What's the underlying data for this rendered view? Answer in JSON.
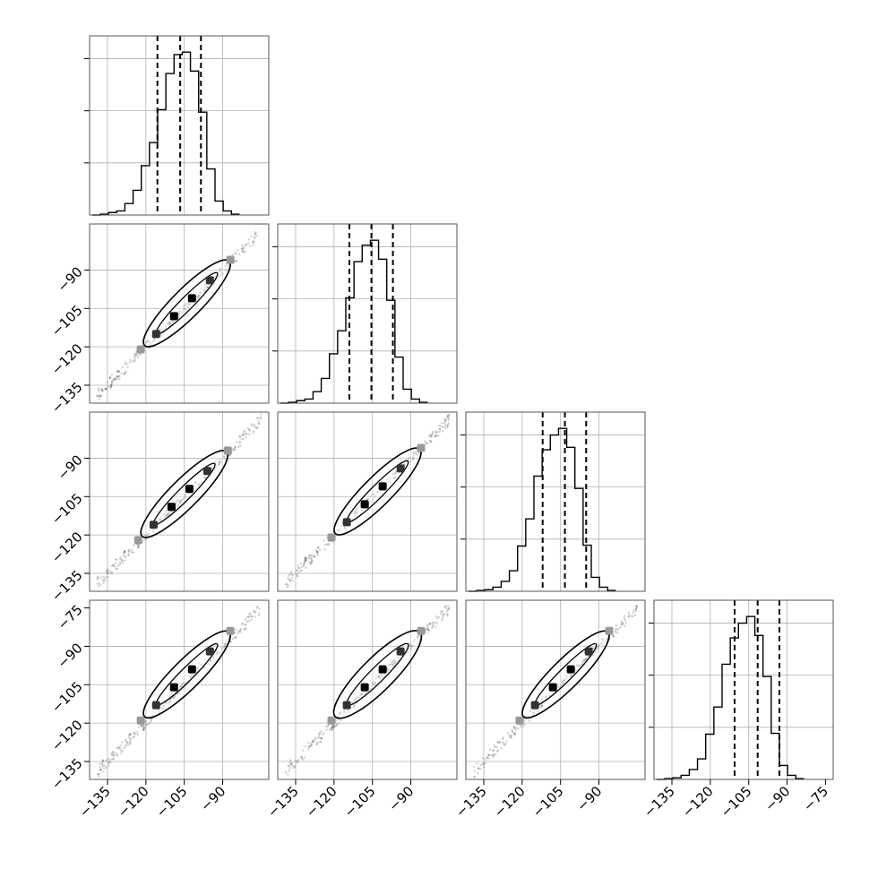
{
  "chart_data": {
    "type": "corner",
    "title": "",
    "n_params": 4,
    "param_labels": [
      "",
      "",
      "",
      ""
    ],
    "axis_range": [
      -142,
      -72
    ],
    "tick_values": [
      -135,
      -120,
      -105,
      -90
    ],
    "tick_labels": [
      "−135",
      "−120",
      "−105",
      "−90"
    ],
    "extra_ticks": {
      "x_last": {
        "value": -75,
        "label": "−75"
      },
      "y_last_row": {
        "value": -75,
        "label": "−75"
      }
    },
    "grid": true,
    "colors": {
      "line": "#000000",
      "grid": "#b0b0b0",
      "points": "#000000"
    },
    "histograms": [
      {
        "param": 0,
        "quantile_lines": [
          -115.5,
          -106.6,
          -98.5
        ],
        "bin_start": -141,
        "bin_width": 3.2,
        "counts": [
          0,
          1,
          3,
          5,
          14,
          30,
          60,
          88,
          128,
          172,
          195,
          198,
          175,
          125,
          56,
          17,
          5,
          1
        ]
      },
      {
        "param": 1,
        "quantile_lines": [
          -114.0,
          -105.4,
          -97.0
        ],
        "bin_start": -141,
        "bin_width": 3.2,
        "counts": [
          0,
          1,
          3,
          5,
          14,
          30,
          60,
          88,
          128,
          172,
          192,
          198,
          175,
          125,
          56,
          17,
          5,
          1
        ]
      },
      {
        "param": 2,
        "quantile_lines": [
          -112.0,
          -103.3,
          -95.0
        ],
        "bin_start": -141,
        "bin_width": 3.2,
        "counts": [
          0,
          1,
          2,
          5,
          12,
          25,
          55,
          88,
          140,
          172,
          190,
          198,
          175,
          125,
          56,
          17,
          5,
          1
        ]
      },
      {
        "param": 3,
        "quantile_lines": [
          -110.5,
          -101.5,
          -93.0
        ],
        "bin_start": -141,
        "bin_width": 3.2,
        "counts": [
          0,
          1,
          2,
          5,
          12,
          25,
          55,
          88,
          140,
          172,
          190,
          198,
          175,
          125,
          56,
          17,
          5,
          1
        ]
      }
    ],
    "pairs": [
      {
        "row": 1,
        "col": 0,
        "center": [
          -104,
          -103
        ],
        "contour_halfwidth": 3.5
      },
      {
        "row": 2,
        "col": 0,
        "center": [
          -105,
          -104
        ],
        "contour_halfwidth": 3.5
      },
      {
        "row": 2,
        "col": 1,
        "center": [
          -103,
          -103
        ],
        "contour_halfwidth": 3.5
      },
      {
        "row": 3,
        "col": 0,
        "center": [
          -104,
          -101
        ],
        "contour_halfwidth": 3.5
      },
      {
        "row": 3,
        "col": 1,
        "center": [
          -103,
          -101
        ],
        "contour_halfwidth": 4.0
      },
      {
        "row": 3,
        "col": 2,
        "center": [
          -103,
          -101
        ],
        "contour_halfwidth": 3.5
      }
    ]
  }
}
